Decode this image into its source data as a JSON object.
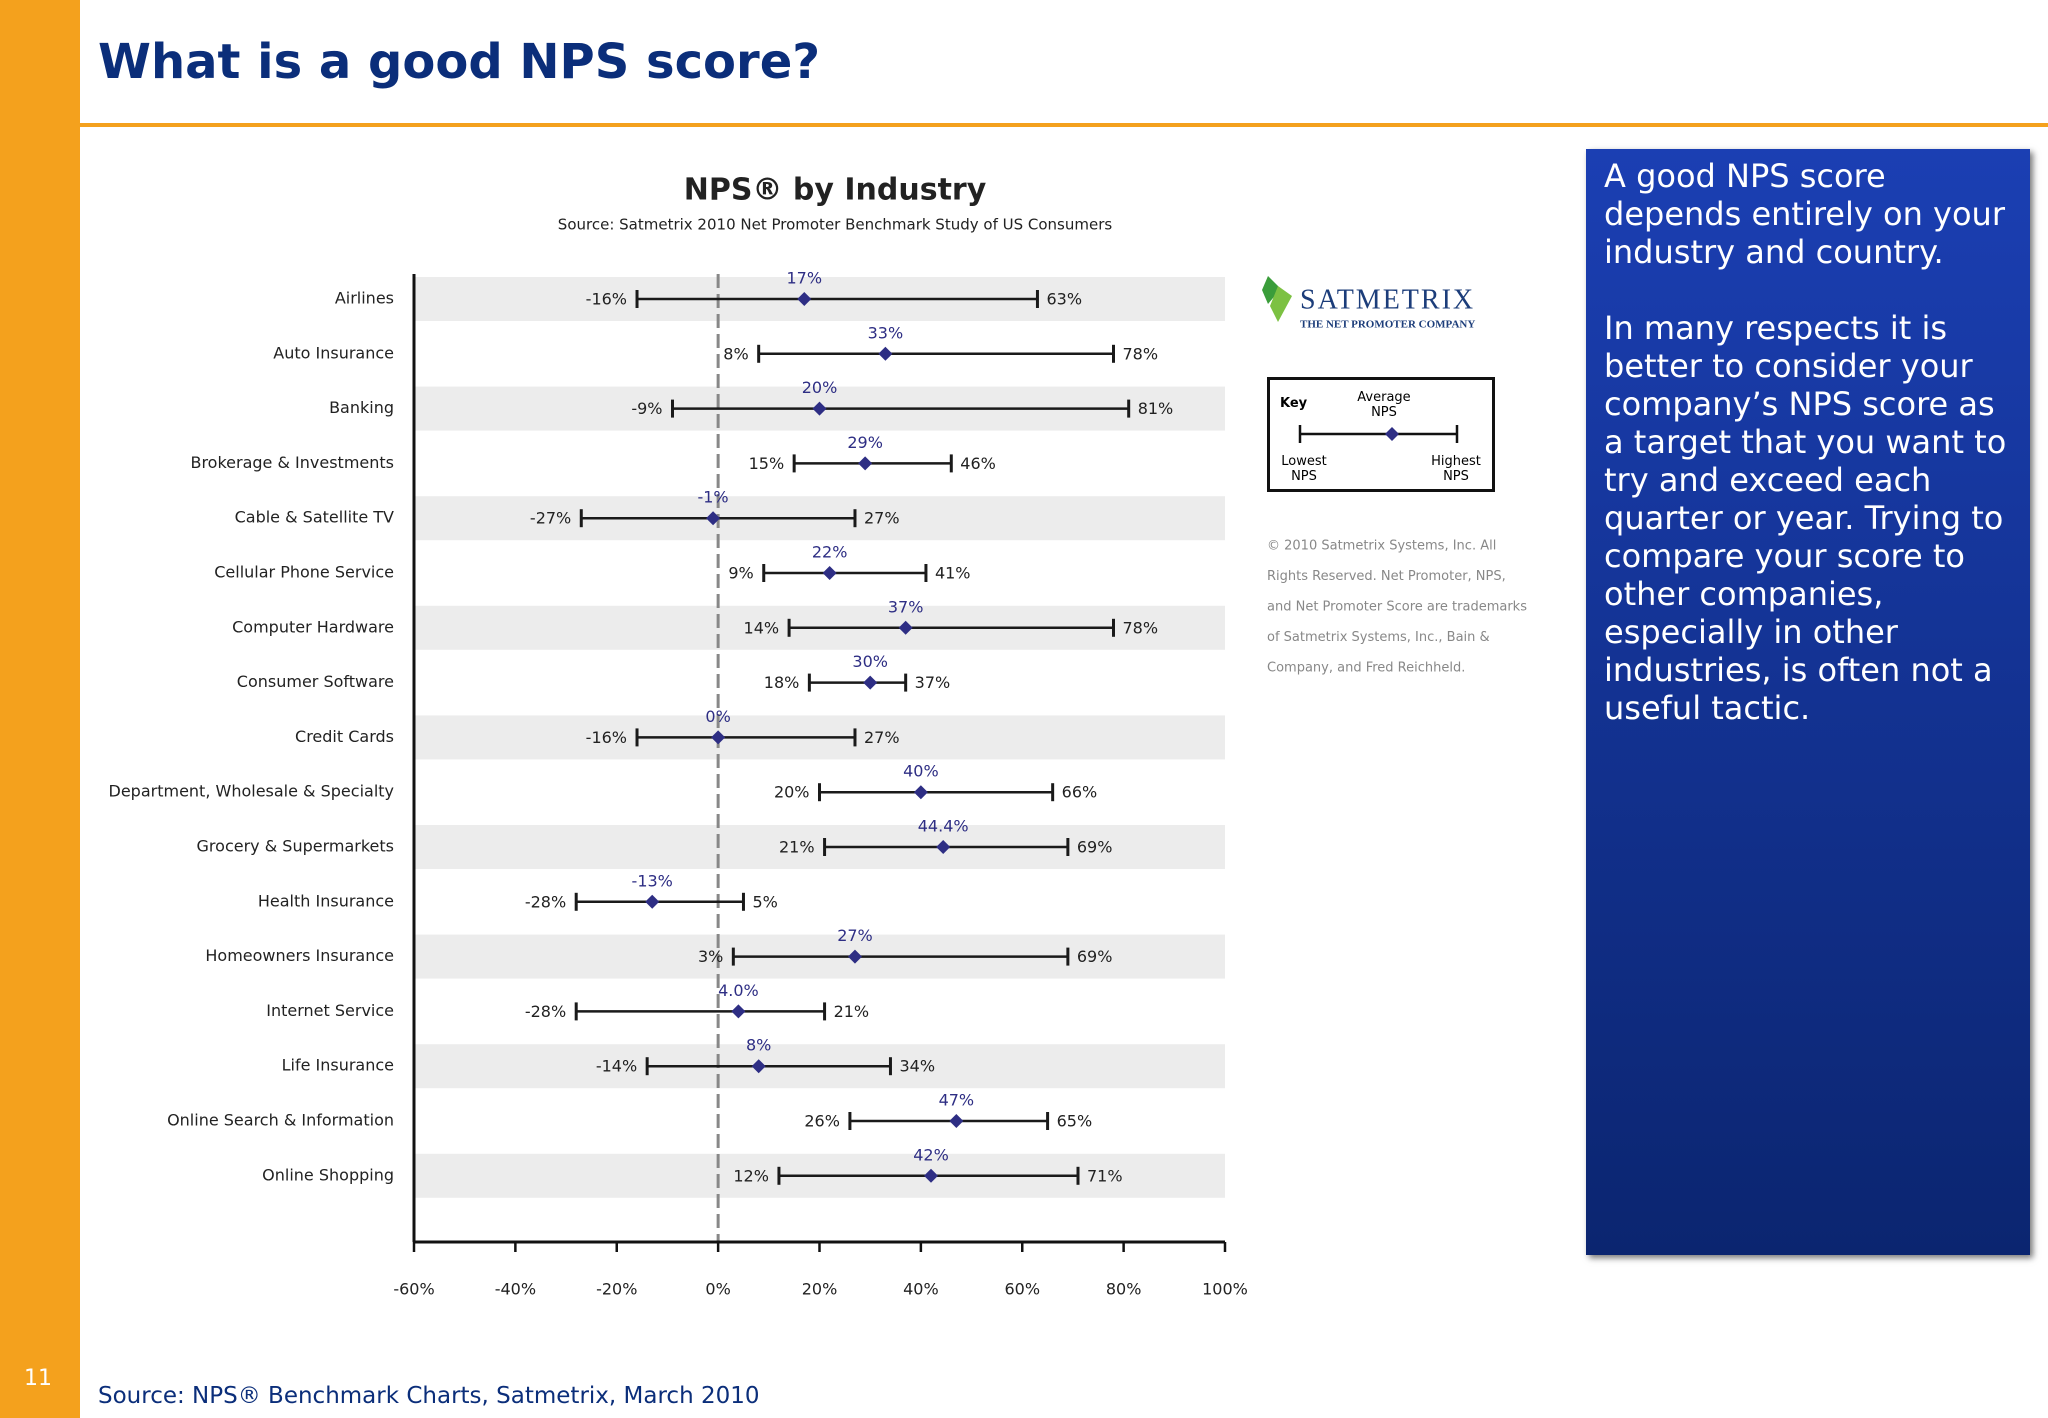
{
  "slide": {
    "title": "What is a good NPS score?",
    "page_number": "11",
    "source": "Source: NPS® Benchmark Charts, Satmetrix, March 2010",
    "panel": [
      "A good NPS score depends entirely on your industry and country.",
      "In many respects it is better to consider your company’s NPS score as a target that you want to try and exceed each quarter or year.  Trying to compare your score to other companies, especially in other industries, is often not a useful tactic."
    ]
  },
  "chart_data": {
    "type": "range",
    "title": "NPS® by Industry",
    "subtitle": "Source: Satmetrix 2010 Net Promoter Benchmark Study of US Consumers",
    "categories": [
      "Airlines",
      "Auto Insurance",
      "Banking",
      "Brokerage & Investments",
      "Cable & Satellite TV",
      "Cellular Phone Service",
      "Computer Hardware",
      "Consumer Software",
      "Credit Cards",
      "Department, Wholesale & Specialty",
      "Grocery & Supermarkets",
      "Health Insurance",
      "Homeowners Insurance",
      "Internet Service",
      "Life Insurance",
      "Online Search & Information",
      "Online Shopping"
    ],
    "series": [
      {
        "name": "Lowest NPS",
        "color": "#1a1a1a",
        "values": [
          -16,
          8,
          -9,
          15,
          -27,
          9,
          14,
          18,
          -16,
          20,
          21,
          -28,
          3,
          -28,
          -14,
          26,
          12
        ],
        "value_labels": [
          "-16%",
          "8%",
          "-9%",
          "15%",
          "-27%",
          "9%",
          "14%",
          "18%",
          "-16%",
          "20%",
          "21%",
          "-28%",
          "3%",
          "-28%",
          "-14%",
          "26%",
          "12%"
        ]
      },
      {
        "name": "Average NPS",
        "color": "#2e2e84",
        "values": [
          17,
          33,
          20,
          29,
          -1,
          22,
          37,
          30,
          0,
          40,
          44.4,
          -13,
          27,
          4.0,
          8,
          47,
          42
        ],
        "value_labels": [
          "17%",
          "33%",
          "20%",
          "29%",
          "-1%",
          "22%",
          "37%",
          "30%",
          "0%",
          "40%",
          "44.4%",
          "-13%",
          "27%",
          "4.0%",
          "8%",
          "47%",
          "42%"
        ]
      },
      {
        "name": "Highest NPS",
        "color": "#1a1a1a",
        "values": [
          63,
          78,
          81,
          46,
          27,
          41,
          78,
          37,
          27,
          66,
          69,
          5,
          69,
          21,
          34,
          65,
          71
        ],
        "value_labels": [
          "63%",
          "78%",
          "81%",
          "46%",
          "27%",
          "41%",
          "78%",
          "37%",
          "27%",
          "66%",
          "69%",
          "5%",
          "69%",
          "21%",
          "34%",
          "65%",
          "71%"
        ]
      }
    ],
    "xlim": [
      -60,
      100
    ],
    "xticks": [
      {
        "value": -60,
        "label": "-60%"
      },
      {
        "value": -40,
        "label": "-40%"
      },
      {
        "value": -20,
        "label": "-20%"
      },
      {
        "value": 0,
        "label": "0%"
      },
      {
        "value": 20,
        "label": "20%"
      },
      {
        "value": 40,
        "label": "40%"
      },
      {
        "value": 60,
        "label": "60%"
      },
      {
        "value": 80,
        "label": "80%"
      },
      {
        "value": 100,
        "label": "100%"
      }
    ],
    "banded": true,
    "legend_title": "Key",
    "logo": {
      "name": "SATMETRIX",
      "tagline": "THE NET PROMOTER COMPANY"
    },
    "copyright": [
      "© 2010 Satmetrix Systems, Inc. All",
      "Rights Reserved.  Net Promoter, NPS,",
      "and Net Promoter Score are trademarks",
      "of Satmetrix Systems, Inc., Bain &",
      "Company, and Fred Reichheld."
    ]
  }
}
